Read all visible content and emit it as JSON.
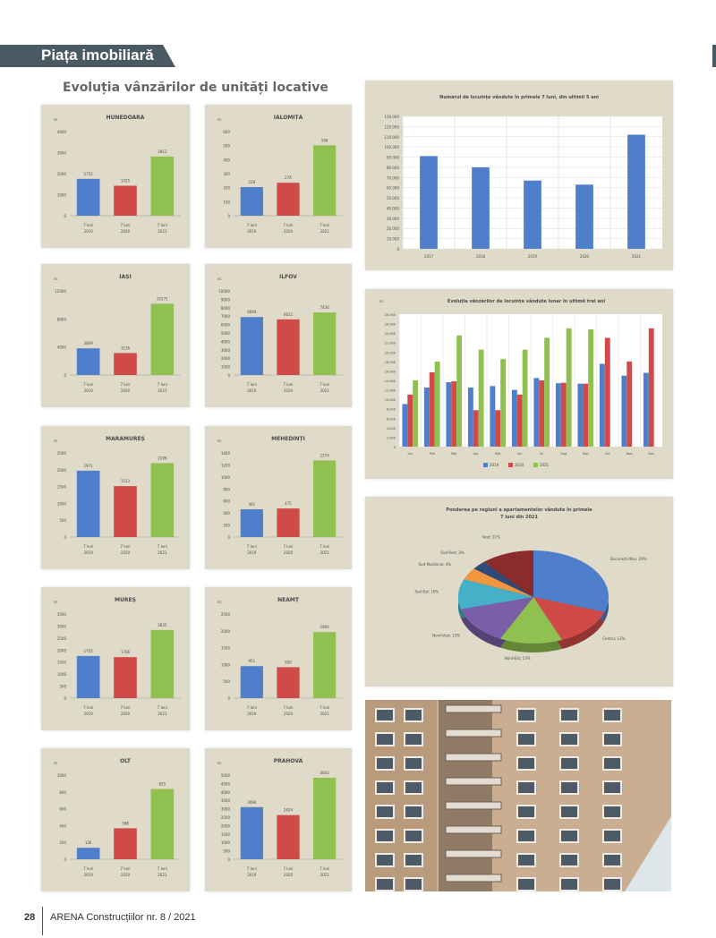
{
  "header": {
    "section_label": "Piața imobiliară"
  },
  "page": {
    "title": "Evoluția vânzărilor de unități locative"
  },
  "colors": {
    "blue": "#4f7fcb",
    "red": "#cf4a48",
    "green": "#8fc050",
    "panel_bg": "#e0dbc8"
  },
  "chart_data": [
    {
      "type": "bar",
      "title": "HUNEDOARA",
      "ylabel": "nr.",
      "categories": [
        "7 luni 2019",
        "7 luni 2020",
        "7 luni 2021"
      ],
      "values": [
        1752,
        1425,
        2812
      ],
      "ylim": [
        0,
        4000
      ],
      "ticks": [
        "0",
        "1000",
        "2000",
        "3000",
        "4000"
      ]
    },
    {
      "type": "bar",
      "title": "IALOMIȚA",
      "ylabel": "nr.",
      "categories": [
        "7 luni 2019",
        "7 luni 2020",
        "7 luni 2021"
      ],
      "values": [
        238,
        274,
        586
      ],
      "ylim": [
        0,
        700
      ],
      "ticks": [
        "0",
        "100",
        "200",
        "300",
        "400",
        "500",
        "600"
      ]
    },
    {
      "type": "bar",
      "title": "IAȘI",
      "ylabel": "nr.",
      "categories": [
        "7 luni 2019",
        "7 luni 2020",
        "7 luni 2021"
      ],
      "values": [
        3809,
        3136,
        10171
      ],
      "ylim": [
        0,
        12000
      ],
      "ticks": [
        "0",
        "4000",
        "8000",
        "12000"
      ]
    },
    {
      "type": "bar",
      "title": "ILFOV",
      "ylabel": "nr.",
      "categories": [
        "7 luni 2019",
        "7 luni 2020",
        "7 luni 2021"
      ],
      "values": [
        6894,
        6615,
        7436
      ],
      "ylim": [
        0,
        10000
      ],
      "ticks": [
        "0",
        "1000",
        "2000",
        "3000",
        "4000",
        "5000",
        "6000",
        "7000",
        "8000",
        "9000",
        "10000"
      ]
    },
    {
      "type": "bar",
      "title": "MARAMUREȘ",
      "ylabel": "nr.",
      "categories": [
        "7 luni 2019",
        "7 luni 2020",
        "7 luni 2021"
      ],
      "values": [
        1971,
        1513,
        2196
      ],
      "ylim": [
        0,
        2500
      ],
      "ticks": [
        "0",
        "500",
        "1000",
        "1500",
        "2000",
        "2500"
      ]
    },
    {
      "type": "bar",
      "title": "MEHEDINȚI",
      "ylabel": "nr.",
      "categories": [
        "7 luni 2019",
        "7 luni 2020",
        "7 luni 2021"
      ],
      "values": [
        461,
        475,
        1274
      ],
      "ylim": [
        0,
        1400
      ],
      "ticks": [
        "0",
        "200",
        "400",
        "600",
        "800",
        "1000",
        "1200",
        "1400"
      ]
    },
    {
      "type": "bar",
      "title": "MUREȘ",
      "ylabel": "nr.",
      "categories": [
        "7 luni 2019",
        "7 luni 2020",
        "7 luni 2021"
      ],
      "values": [
        1755,
        1706,
        2835
      ],
      "ylim": [
        0,
        3500
      ],
      "ticks": [
        "0",
        "500",
        "1000",
        "1500",
        "2000",
        "2500",
        "3000",
        "3500"
      ]
    },
    {
      "type": "bar",
      "title": "NEAMȚ",
      "ylabel": "nr.",
      "categories": [
        "7 luni 2019",
        "7 luni 2020",
        "7 luni 2021"
      ],
      "values": [
        951,
        920,
        1964
      ],
      "ylim": [
        0,
        2500
      ],
      "ticks": [
        "0",
        "500",
        "1000",
        "1500",
        "2000",
        "2500"
      ]
    },
    {
      "type": "bar",
      "title": "OLT",
      "ylabel": "nr.",
      "categories": [
        "7 luni 2019",
        "7 luni 2020",
        "7 luni 2021"
      ],
      "values": [
        136,
        368,
        835
      ],
      "ylim": [
        0,
        1000
      ],
      "ticks": [
        "0",
        "200",
        "400",
        "600",
        "800",
        "1000"
      ]
    },
    {
      "type": "bar",
      "title": "PRAHOVA",
      "ylabel": "nr.",
      "categories": [
        "7 luni 2019",
        "7 luni 2020",
        "7 luni 2021"
      ],
      "values": [
        3096,
        2624,
        4843
      ],
      "ylim": [
        0,
        5000
      ],
      "ticks": [
        "0",
        "500",
        "1000",
        "1500",
        "2000",
        "2500",
        "3000",
        "3500",
        "4000",
        "4500",
        "5000"
      ]
    },
    {
      "type": "bar",
      "title": "Numărul de locuințe vândute în primele 7 luni, din ultimii 5 ani",
      "categories": [
        "2017",
        "2018",
        "2019",
        "2020",
        "2021"
      ],
      "values": [
        91000,
        80000,
        67000,
        63000,
        112000
      ],
      "ylim": [
        0,
        130000
      ],
      "ticks": [
        "0",
        "10.000",
        "20.000",
        "30.000",
        "40.000",
        "50.000",
        "60.000",
        "70.000",
        "80.000",
        "90.000",
        "100.000",
        "110.000",
        "120.000",
        "130.000"
      ]
    },
    {
      "type": "bar",
      "title": "Evoluția vânzărilor de locuințe vândute lunar în ultimii trei ani",
      "ylabel": "nr.",
      "categories": [
        "Ian",
        "Feb",
        "Mar",
        "Apr",
        "Mai",
        "Iun",
        "Iul",
        "Aug",
        "Sep",
        "Oct",
        "Nov",
        "Dec"
      ],
      "series": [
        {
          "name": "2019",
          "values": [
            9000,
            12500,
            13600,
            12500,
            12800,
            12000,
            14500,
            13400,
            13300,
            17500,
            15000,
            15600
          ]
        },
        {
          "name": "2020",
          "values": [
            11000,
            15700,
            13800,
            7700,
            7700,
            11000,
            14000,
            13500,
            13300,
            23000,
            18000,
            25000
          ]
        },
        {
          "name": "2021",
          "values": [
            14000,
            18000,
            23500,
            20500,
            18500,
            20500,
            23000,
            25000,
            24800,
            0,
            0,
            0
          ]
        }
      ],
      "ylim": [
        0,
        28000
      ],
      "ticks": [
        "0",
        "2.000",
        "4.000",
        "6.000",
        "8.000",
        "10.000",
        "12.000",
        "14.000",
        "16.000",
        "18.000",
        "20.000",
        "22.000",
        "24.000",
        "26.000",
        "28.000"
      ]
    },
    {
      "type": "pie",
      "title": "Ponderea pe regiuni a apartamentelor vândute în primele 7 luni din 2021",
      "labels": [
        "București-Ilfov; 29%",
        "Centru; 13%",
        "Nord-Est; 13%",
        "Nord-Vest; 13%",
        "Sud-Est; 10%",
        "Sud-Muntenia; 4%",
        "Sud-Vest; 3%",
        "Vest; 11%"
      ],
      "values": [
        29,
        13,
        13,
        13,
        10,
        4,
        3,
        11
      ],
      "colors": [
        "#4f7fcb",
        "#cf4a48",
        "#8fc050",
        "#7a5fa8",
        "#45b0c8",
        "#f0963e",
        "#2d4a78",
        "#8c2b2b"
      ]
    }
  ],
  "footer": {
    "page_number": "28",
    "publication": "ARENA Construcțiilor nr. 8 / 2021"
  }
}
